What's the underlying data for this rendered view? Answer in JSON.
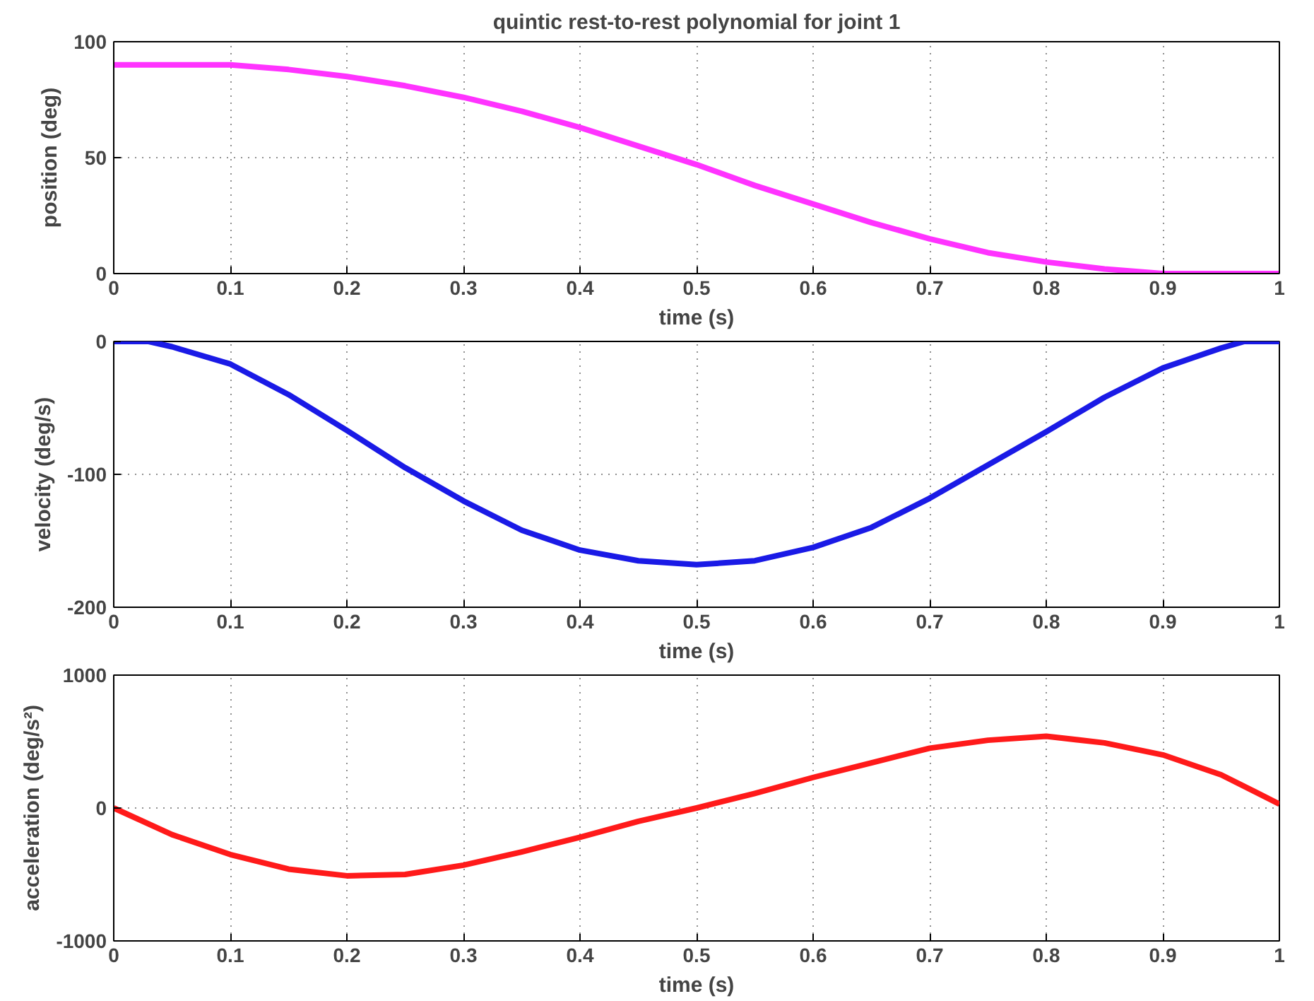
{
  "chart_data": [
    {
      "type": "line",
      "title": "quintic rest-to-rest polynomial for joint 1",
      "xlabel": "time (s)",
      "ylabel": "position (deg)",
      "x": [
        0,
        0.05,
        0.1,
        0.15,
        0.2,
        0.25,
        0.3,
        0.35,
        0.4,
        0.45,
        0.5,
        0.55,
        0.6,
        0.65,
        0.7,
        0.75,
        0.8,
        0.85,
        0.9,
        0.95,
        1
      ],
      "series": [
        {
          "color": "#ff33ff",
          "values": [
            90,
            90,
            90,
            88,
            85,
            81,
            76,
            70,
            63,
            55,
            47,
            38,
            30,
            22,
            15,
            9,
            5,
            2,
            0,
            0,
            0
          ]
        }
      ],
      "xlim": [
        0,
        1
      ],
      "xticks": [
        0,
        0.1,
        0.2,
        0.3,
        0.4,
        0.5,
        0.6,
        0.7,
        0.8,
        0.9,
        1
      ],
      "ylim": [
        0,
        100
      ],
      "yticks": [
        0,
        50,
        100
      ],
      "grid": true
    },
    {
      "type": "line",
      "xlabel": "time (s)",
      "ylabel": "velocity (deg/s)",
      "x": [
        0,
        0.03,
        0.05,
        0.1,
        0.15,
        0.2,
        0.25,
        0.3,
        0.35,
        0.4,
        0.45,
        0.5,
        0.55,
        0.6,
        0.65,
        0.7,
        0.75,
        0.8,
        0.85,
        0.9,
        0.95,
        0.97,
        1
      ],
      "series": [
        {
          "color": "#1a1ae6",
          "values": [
            0,
            0,
            -4,
            -17,
            -40,
            -67,
            -95,
            -120,
            -142,
            -157,
            -165,
            -168,
            -165,
            -155,
            -140,
            -118,
            -93,
            -68,
            -42,
            -20,
            -5,
            0,
            0
          ]
        }
      ],
      "xlim": [
        0,
        1
      ],
      "xticks": [
        0,
        0.1,
        0.2,
        0.3,
        0.4,
        0.5,
        0.6,
        0.7,
        0.8,
        0.9,
        1
      ],
      "ylim": [
        -200,
        0
      ],
      "yticks": [
        -200,
        -100,
        0
      ],
      "grid": true
    },
    {
      "type": "line",
      "xlabel": "time (s)",
      "ylabel": "acceleration (deg/s²)",
      "x": [
        0,
        0.05,
        0.1,
        0.15,
        0.2,
        0.25,
        0.3,
        0.35,
        0.4,
        0.45,
        0.5,
        0.55,
        0.6,
        0.65,
        0.7,
        0.75,
        0.8,
        0.85,
        0.9,
        0.95,
        1
      ],
      "series": [
        {
          "color": "#ff1a1a",
          "values": [
            0,
            -200,
            -350,
            -460,
            -510,
            -500,
            -430,
            -330,
            -220,
            -100,
            0,
            110,
            230,
            340,
            450,
            510,
            540,
            490,
            400,
            250,
            30
          ]
        }
      ],
      "xlim": [
        0,
        1
      ],
      "xticks": [
        0,
        0.1,
        0.2,
        0.3,
        0.4,
        0.5,
        0.6,
        0.7,
        0.8,
        0.9,
        1
      ],
      "ylim": [
        -1000,
        1000
      ],
      "yticks": [
        -1000,
        0,
        1000
      ],
      "grid": true
    }
  ]
}
